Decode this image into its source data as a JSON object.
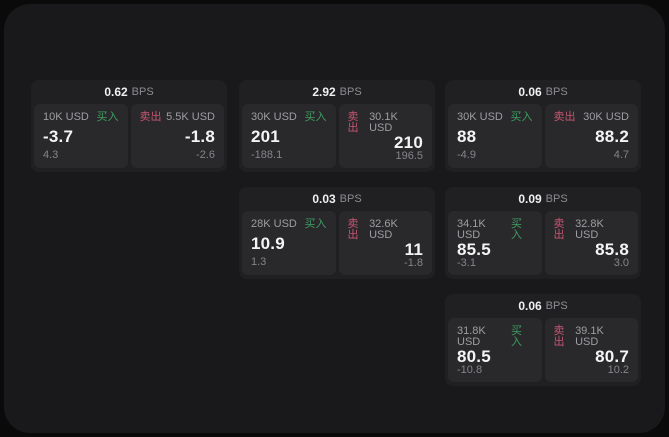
{
  "labels": {
    "bps": "BPS",
    "buy": "买入",
    "sell": "卖出"
  },
  "colors": {
    "buy_green": "#3f9e63",
    "sell_red": "#c65570",
    "value_white": "#f4f4f4",
    "label_gray": "#9e9ea2",
    "backdrop": "#0a0a0a",
    "panel_bg": "#19191b",
    "card_bg": "#202022",
    "side_bg": "#29292b"
  },
  "cards": [
    {
      "bps": "0.62",
      "buy": {
        "size": "10K USD",
        "value": "-3.7",
        "delta": "4.3"
      },
      "sell": {
        "size": "5.5K USD",
        "value": "-1.8",
        "delta": "-2.6"
      }
    },
    {
      "bps": "2.92",
      "buy": {
        "size": "30K USD",
        "value": "201",
        "delta": "-188.1"
      },
      "sell": {
        "size": "30.1K USD",
        "value": "210",
        "delta": "196.5"
      }
    },
    {
      "bps": "0.06",
      "buy": {
        "size": "30K USD",
        "value": "88",
        "delta": "-4.9"
      },
      "sell": {
        "size": "30K USD",
        "value": "88.2",
        "delta": "4.7"
      }
    },
    {
      "bps": "0.03",
      "buy": {
        "size": "28K USD",
        "value": "10.9",
        "delta": "1.3"
      },
      "sell": {
        "size": "32.6K USD",
        "value": "11",
        "delta": "-1.8"
      }
    },
    {
      "bps": "0.09",
      "buy": {
        "size": "34.1K USD",
        "value": "85.5",
        "delta": "-3.1"
      },
      "sell": {
        "size": "32.8K USD",
        "value": "85.8",
        "delta": "3.0"
      }
    },
    {
      "bps": "0.06",
      "buy": {
        "size": "31.8K USD",
        "value": "80.5",
        "delta": "-10.8"
      },
      "sell": {
        "size": "39.1K USD",
        "value": "80.7",
        "delta": "10.2"
      }
    }
  ]
}
